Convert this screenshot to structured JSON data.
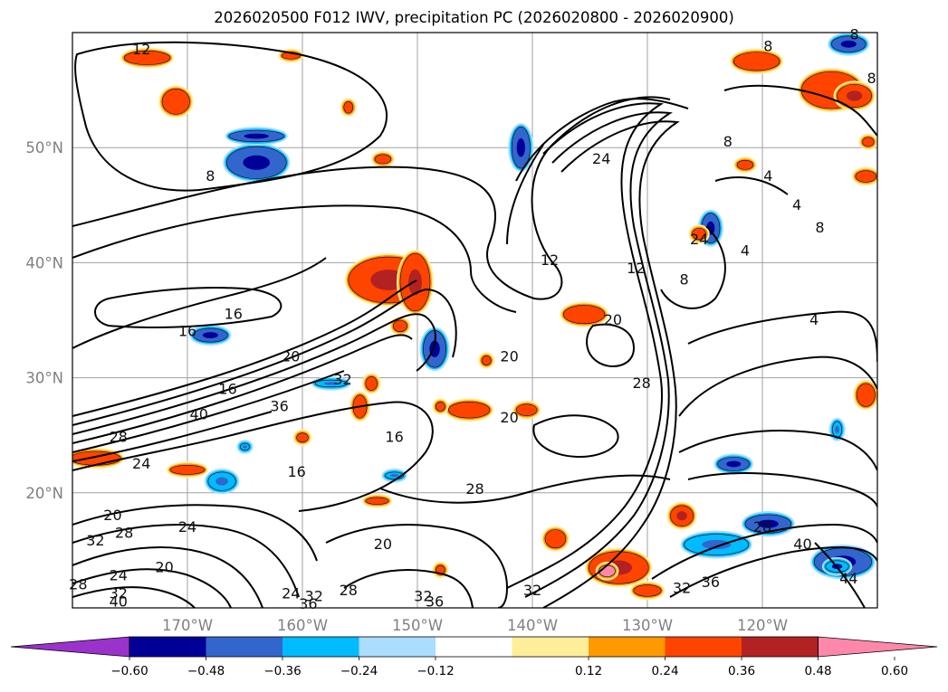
{
  "title": "2026020500 F012 IWV, precipitation PC (2026020800 - 2026020900)",
  "map": {
    "extent": {
      "lon_min": -180,
      "lon_max": -110,
      "lat_min": 10,
      "lat_max": 60
    },
    "lat_labels": [
      {
        "lat": 50,
        "text": "50°N"
      },
      {
        "lat": 40,
        "text": "40°N"
      },
      {
        "lat": 30,
        "text": "30°N"
      },
      {
        "lat": 20,
        "text": "20°N"
      }
    ],
    "lon_labels": [
      {
        "lon": -170,
        "text": "170°W"
      },
      {
        "lon": -160,
        "text": "160°W"
      },
      {
        "lon": -150,
        "text": "150°W"
      },
      {
        "lon": -140,
        "text": "140°W"
      },
      {
        "lon": -130,
        "text": "130°W"
      },
      {
        "lon": -120,
        "text": "120°W"
      }
    ],
    "contour_labels": [
      {
        "text": "8",
        "lon": -168.0,
        "lat": 47.5
      },
      {
        "text": "12",
        "lon": -138.5,
        "lat": 40.2
      },
      {
        "text": "24",
        "lon": -134.0,
        "lat": 49.0
      },
      {
        "text": "12",
        "lon": -131.0,
        "lat": 39.5
      },
      {
        "text": "8",
        "lon": -126.8,
        "lat": 38.5
      },
      {
        "text": "24",
        "lon": -125.5,
        "lat": 42.0
      },
      {
        "text": "16",
        "lon": -166.0,
        "lat": 35.5
      },
      {
        "text": "16",
        "lon": -170.0,
        "lat": 34.0
      },
      {
        "text": "20",
        "lon": -161.0,
        "lat": 31.8
      },
      {
        "text": "32",
        "lon": -156.5,
        "lat": 29.8
      },
      {
        "text": "16",
        "lon": -166.5,
        "lat": 29.0
      },
      {
        "text": "40",
        "lon": -169.0,
        "lat": 26.8
      },
      {
        "text": "36",
        "lon": -162.0,
        "lat": 27.5
      },
      {
        "text": "28",
        "lon": -176.0,
        "lat": 24.8
      },
      {
        "text": "24",
        "lon": -174.0,
        "lat": 22.5
      },
      {
        "text": "20",
        "lon": -142.0,
        "lat": 31.8
      },
      {
        "text": "20",
        "lon": -133.0,
        "lat": 35.0
      },
      {
        "text": "20",
        "lon": -142.0,
        "lat": 26.5
      },
      {
        "text": "28",
        "lon": -130.5,
        "lat": 29.5
      },
      {
        "text": "16",
        "lon": -152.0,
        "lat": 24.8
      },
      {
        "text": "16",
        "lon": -160.5,
        "lat": 21.8
      },
      {
        "text": "28",
        "lon": -145.0,
        "lat": 20.3
      },
      {
        "text": "20",
        "lon": -176.5,
        "lat": 18.0
      },
      {
        "text": "28",
        "lon": -175.5,
        "lat": 16.5
      },
      {
        "text": "32",
        "lon": -178.0,
        "lat": 15.8
      },
      {
        "text": "24",
        "lon": -170.0,
        "lat": 17.0
      },
      {
        "text": "20",
        "lon": -153.0,
        "lat": 15.5
      },
      {
        "text": "20",
        "lon": -172.0,
        "lat": 13.5
      },
      {
        "text": "24",
        "lon": -176.0,
        "lat": 12.8
      },
      {
        "text": "28",
        "lon": -179.5,
        "lat": 12.0
      },
      {
        "text": "32",
        "lon": -176.0,
        "lat": 11.2
      },
      {
        "text": "40",
        "lon": -176.0,
        "lat": 10.5
      },
      {
        "text": "24",
        "lon": -161.0,
        "lat": 11.2
      },
      {
        "text": "32",
        "lon": -159.0,
        "lat": 11.0
      },
      {
        "text": "36",
        "lon": -159.5,
        "lat": 10.3
      },
      {
        "text": "28",
        "lon": -156.0,
        "lat": 11.5
      },
      {
        "text": "32",
        "lon": -149.5,
        "lat": 11.0
      },
      {
        "text": "36",
        "lon": -148.5,
        "lat": 10.5
      },
      {
        "text": "32",
        "lon": -140.0,
        "lat": 11.5
      },
      {
        "text": "32",
        "lon": -127.0,
        "lat": 11.7
      },
      {
        "text": "36",
        "lon": -124.5,
        "lat": 12.2
      },
      {
        "text": "40",
        "lon": -116.5,
        "lat": 15.5
      },
      {
        "text": "44",
        "lon": -112.5,
        "lat": 12.5
      },
      {
        "text": "28",
        "lon": -120.0,
        "lat": 17.0
      },
      {
        "text": "8",
        "lon": -119.5,
        "lat": 58.8
      },
      {
        "text": "8",
        "lon": -112.0,
        "lat": 59.8
      },
      {
        "text": "8",
        "lon": -110.5,
        "lat": 56.0
      },
      {
        "text": "8",
        "lon": -115.0,
        "lat": 43.0
      },
      {
        "text": "4",
        "lon": -117.0,
        "lat": 45.0
      },
      {
        "text": "4",
        "lon": -119.5,
        "lat": 47.5
      },
      {
        "text": "4",
        "lon": -121.5,
        "lat": 41.0
      },
      {
        "text": "4",
        "lon": -115.5,
        "lat": 35.0
      },
      {
        "text": "12",
        "lon": -174.0,
        "lat": 58.5
      },
      {
        "text": "8",
        "lon": -123.0,
        "lat": 50.5
      }
    ]
  },
  "colorbar": {
    "ticks": [
      "−0.60",
      "−0.48",
      "−0.36",
      "−0.24",
      "−0.12",
      "0.12",
      "0.24",
      "0.36",
      "0.48",
      "0.60"
    ],
    "colors": {
      "lt_-0.60": "#9933cc",
      "-0.60_-0.48": "#000099",
      "-0.48_-0.36": "#3366cc",
      "-0.36_-0.24": "#00bbff",
      "-0.24_-0.12": "#aaddff",
      "-0.12_0.12": "#ffffff",
      "0.12_0.24": "#ffee99",
      "0.24_0.36": "#ff9900",
      "0.36_0.48": "#ff4400",
      "0.48_0.60": "#b22222",
      "gt_0.60": "#ff88aa"
    }
  },
  "precip_blobs": [
    {
      "lon": -164.0,
      "lat": 48.7,
      "rx": 2.6,
      "ry": 1.4,
      "color": "#3366cc",
      "core": "#000099"
    },
    {
      "lon": -164.0,
      "lat": 51.0,
      "rx": 2.4,
      "ry": 0.5,
      "color": "#3366cc",
      "core": "#000099"
    },
    {
      "lon": -171.0,
      "lat": 54.0,
      "rx": 1.2,
      "ry": 1.1,
      "color": "#ff4400",
      "core": "#ff4400"
    },
    {
      "lon": -152.5,
      "lat": 38.5,
      "rx": 3.5,
      "ry": 2.0,
      "color": "#ff4400",
      "core": "#b22222"
    },
    {
      "lon": -150.2,
      "lat": 38.3,
      "rx": 1.3,
      "ry": 2.5,
      "color": "#ff4400",
      "core": "#b22222"
    },
    {
      "lon": -168.0,
      "lat": 33.7,
      "rx": 1.5,
      "ry": 0.6,
      "color": "#3366cc",
      "core": "#000099"
    },
    {
      "lon": -148.5,
      "lat": 32.5,
      "rx": 1.0,
      "ry": 1.6,
      "color": "#3366cc",
      "core": "#000099"
    },
    {
      "lon": -145.5,
      "lat": 27.2,
      "rx": 1.8,
      "ry": 0.7,
      "color": "#ff4400",
      "core": "#ff4400"
    },
    {
      "lon": -140.5,
      "lat": 27.2,
      "rx": 0.9,
      "ry": 0.5,
      "color": "#ff4400",
      "core": "#ff4400"
    },
    {
      "lon": -155.0,
      "lat": 27.5,
      "rx": 0.6,
      "ry": 1.0,
      "color": "#ff4400",
      "core": "#ff4400"
    },
    {
      "lon": -135.5,
      "lat": 35.5,
      "rx": 1.8,
      "ry": 0.8,
      "color": "#ff4400",
      "core": "#ff4400"
    },
    {
      "lon": -178.0,
      "lat": 23.0,
      "rx": 2.2,
      "ry": 0.6,
      "color": "#ff4400",
      "core": "#ff4400"
    },
    {
      "lon": -170.0,
      "lat": 22.0,
      "rx": 1.5,
      "ry": 0.4,
      "color": "#ff4400",
      "core": "#ff4400"
    },
    {
      "lon": -167.0,
      "lat": 21.0,
      "rx": 1.2,
      "ry": 0.8,
      "color": "#00bbff",
      "core": "#3366cc"
    },
    {
      "lon": -141.0,
      "lat": 50.0,
      "rx": 0.8,
      "ry": 1.8,
      "color": "#3366cc",
      "core": "#000099"
    },
    {
      "lon": -124.5,
      "lat": 43.0,
      "rx": 0.8,
      "ry": 1.3,
      "color": "#3366cc",
      "core": "#000099"
    },
    {
      "lon": -114.0,
      "lat": 55.0,
      "rx": 2.6,
      "ry": 1.6,
      "color": "#ff4400",
      "core": "#ff4400"
    },
    {
      "lon": -112.0,
      "lat": 54.5,
      "rx": 1.5,
      "ry": 1.0,
      "color": "#ff4400",
      "core": "#b22222"
    },
    {
      "lon": -120.5,
      "lat": 57.5,
      "rx": 2.0,
      "ry": 0.8,
      "color": "#ff4400",
      "core": "#ff4400"
    },
    {
      "lon": -112.5,
      "lat": 59.0,
      "rx": 1.5,
      "ry": 0.7,
      "color": "#3366cc",
      "core": "#000099"
    },
    {
      "lon": -122.5,
      "lat": 22.5,
      "rx": 1.4,
      "ry": 0.6,
      "color": "#3366cc",
      "core": "#000099"
    },
    {
      "lon": -132.5,
      "lat": 13.5,
      "rx": 2.6,
      "ry": 1.4,
      "color": "#ff4400",
      "core": "#b22222"
    },
    {
      "lon": -133.5,
      "lat": 13.2,
      "rx": 0.7,
      "ry": 0.5,
      "color": "#ff88aa",
      "core": "#ff88aa"
    },
    {
      "lon": -130.0,
      "lat": 11.5,
      "rx": 1.2,
      "ry": 0.5,
      "color": "#ff4400",
      "core": "#ff4400"
    },
    {
      "lon": -127.0,
      "lat": 18.0,
      "rx": 1.0,
      "ry": 0.9,
      "color": "#ff4400",
      "core": "#b22222"
    },
    {
      "lon": -138.0,
      "lat": 16.0,
      "rx": 0.9,
      "ry": 0.8,
      "color": "#ff4400",
      "core": "#ff4400"
    },
    {
      "lon": -119.5,
      "lat": 17.3,
      "rx": 2.0,
      "ry": 0.8,
      "color": "#3366cc",
      "core": "#000099"
    },
    {
      "lon": -124.0,
      "lat": 15.5,
      "rx": 2.8,
      "ry": 0.9,
      "color": "#00bbff",
      "core": "#3366cc"
    },
    {
      "lon": -113.0,
      "lat": 14.0,
      "rx": 2.5,
      "ry": 1.2,
      "color": "#3366cc",
      "core": "#000099"
    },
    {
      "lon": -113.5,
      "lat": 13.6,
      "rx": 1.0,
      "ry": 0.5,
      "color": "#00bbff",
      "core": "#000099"
    },
    {
      "lon": -173.5,
      "lat": 57.8,
      "rx": 2.0,
      "ry": 0.6,
      "color": "#ff4400",
      "core": "#ff4400"
    },
    {
      "lon": -161.0,
      "lat": 58.0,
      "rx": 0.8,
      "ry": 0.3,
      "color": "#ff4400",
      "core": "#ff4400"
    },
    {
      "lon": -153.0,
      "lat": 49.0,
      "rx": 0.7,
      "ry": 0.4,
      "color": "#ff4400",
      "core": "#ff4400"
    },
    {
      "lon": -156.0,
      "lat": 53.5,
      "rx": 0.4,
      "ry": 0.5,
      "color": "#ff4400",
      "core": "#ff4400"
    },
    {
      "lon": -154.0,
      "lat": 29.5,
      "rx": 0.5,
      "ry": 0.6,
      "color": "#ff4400",
      "core": "#ff4400"
    },
    {
      "lon": -157.5,
      "lat": 29.5,
      "rx": 1.4,
      "ry": 0.3,
      "color": "#00bbff",
      "core": "#3366cc"
    },
    {
      "lon": -151.5,
      "lat": 34.5,
      "rx": 0.6,
      "ry": 0.5,
      "color": "#ff4400",
      "core": "#ff4400"
    },
    {
      "lon": -144.0,
      "lat": 31.5,
      "rx": 0.4,
      "ry": 0.4,
      "color": "#ff4400",
      "core": "#ff4400"
    },
    {
      "lon": -160.0,
      "lat": 24.8,
      "rx": 0.5,
      "ry": 0.4,
      "color": "#ff4400",
      "core": "#ff4400"
    },
    {
      "lon": -153.5,
      "lat": 19.3,
      "rx": 1.0,
      "ry": 0.3,
      "color": "#ff4400",
      "core": "#ff4400"
    },
    {
      "lon": -152.0,
      "lat": 21.5,
      "rx": 0.8,
      "ry": 0.3,
      "color": "#00bbff",
      "core": "#3366cc"
    },
    {
      "lon": -113.5,
      "lat": 25.5,
      "rx": 0.4,
      "ry": 0.7,
      "color": "#00bbff",
      "core": "#3366cc"
    },
    {
      "lon": -111.0,
      "lat": 28.5,
      "rx": 0.8,
      "ry": 1.0,
      "color": "#ff4400",
      "core": "#ff4400"
    },
    {
      "lon": -125.5,
      "lat": 42.5,
      "rx": 0.6,
      "ry": 0.5,
      "color": "#ff4400",
      "core": "#ff4400"
    },
    {
      "lon": -121.5,
      "lat": 48.5,
      "rx": 0.7,
      "ry": 0.4,
      "color": "#ff4400",
      "core": "#ff4400"
    },
    {
      "lon": -111.0,
      "lat": 47.5,
      "rx": 0.9,
      "ry": 0.5,
      "color": "#ff4400",
      "core": "#ff4400"
    },
    {
      "lon": -110.8,
      "lat": 50.5,
      "rx": 0.5,
      "ry": 0.4,
      "color": "#ff4400",
      "core": "#ff4400"
    },
    {
      "lon": -148.0,
      "lat": 13.3,
      "rx": 0.4,
      "ry": 0.4,
      "color": "#ff4400",
      "core": "#ff4400"
    },
    {
      "lon": -165.0,
      "lat": 24.0,
      "rx": 0.4,
      "ry": 0.3,
      "color": "#00bbff",
      "core": "#3366cc"
    },
    {
      "lon": -148.0,
      "lat": 27.5,
      "rx": 0.4,
      "ry": 0.4,
      "color": "#ff4400",
      "core": "#ff4400"
    }
  ]
}
